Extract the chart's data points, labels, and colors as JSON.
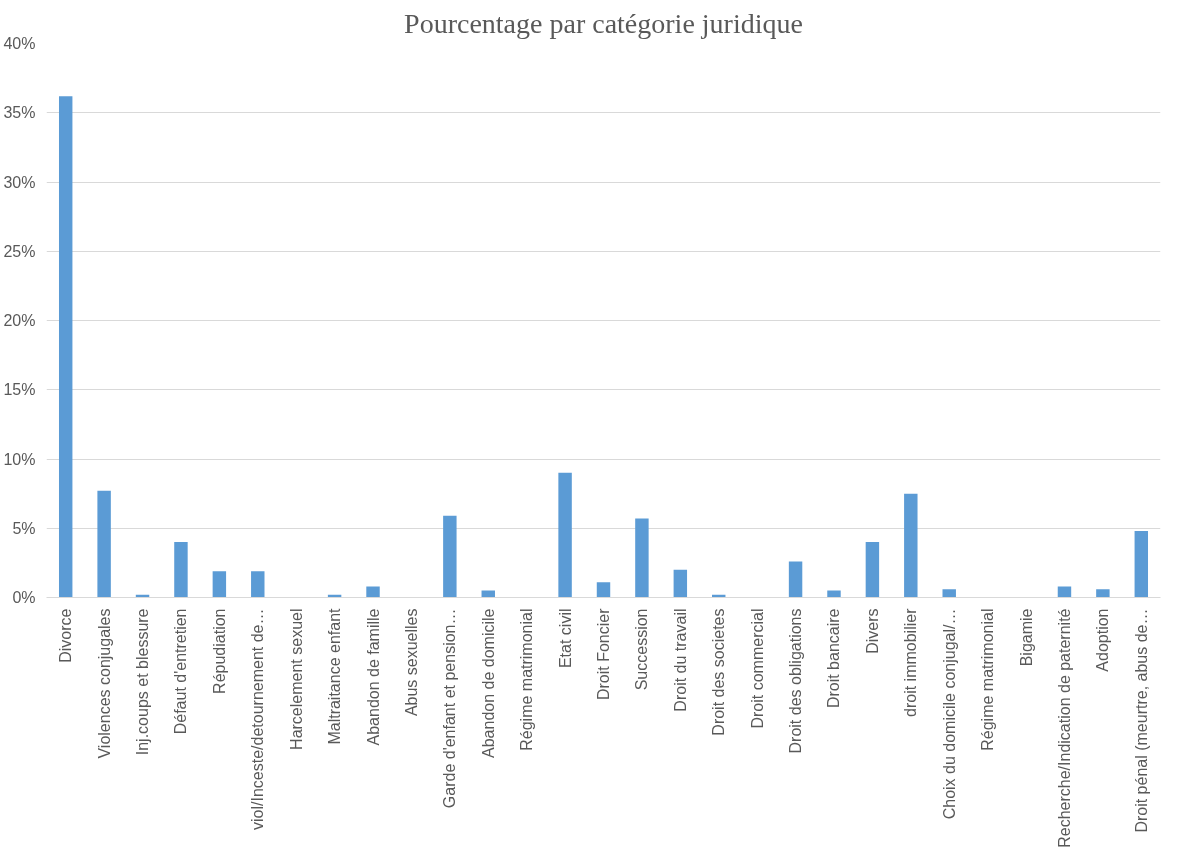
{
  "chart_data": {
    "type": "bar",
    "title": "Pourcentage par catégorie juridique",
    "categories": [
      "Divorce",
      "Violences conjugales",
      "Inj.coups et blessure",
      "Défaut d'entretien",
      "Répudiation",
      "viol/Inceste/detournement de…",
      "Harcelement sexuel",
      "Maltraitance enfant",
      "Abandon de famille",
      "Abus sexuelles",
      "Garde d'enfant et pension…",
      "Abandon de domicile",
      "Régime matrimonial",
      "Etat civil",
      "Droit Foncier",
      "Succession",
      "Droit du travail",
      "Droit des societes",
      "Droit commercial",
      "Droit des obligations",
      "Droit bancaire",
      "Divers",
      "droit immobilier",
      "Choix du domicile conjugal/…",
      "Régime matrimonial",
      "Bigamie",
      "Recherche/Indication de paternité",
      "Adoption",
      "Droit pénal (meurtre, abus de…"
    ],
    "values": [
      36.2,
      7.7,
      0.2,
      4.0,
      1.9,
      1.9,
      0,
      0.2,
      0.8,
      0,
      5.9,
      0.5,
      0,
      9.0,
      1.1,
      5.7,
      2.0,
      0.2,
      0,
      2.6,
      0.5,
      4.0,
      7.5,
      0.6,
      0,
      0,
      0.8,
      0.6,
      4.8
    ],
    "color": "#5b9bd5",
    "ylim": [
      0,
      40
    ],
    "yticks": [
      {
        "value": 0,
        "label": "0%"
      },
      {
        "value": 5,
        "label": "5%"
      },
      {
        "value": 10,
        "label": "10%"
      },
      {
        "value": 15,
        "label": "15%"
      },
      {
        "value": 20,
        "label": "20%"
      },
      {
        "value": 25,
        "label": "25%"
      },
      {
        "value": 30,
        "label": "30%"
      },
      {
        "value": 35,
        "label": "35%"
      },
      {
        "value": 40,
        "label": "40%"
      }
    ],
    "grid": "y"
  }
}
